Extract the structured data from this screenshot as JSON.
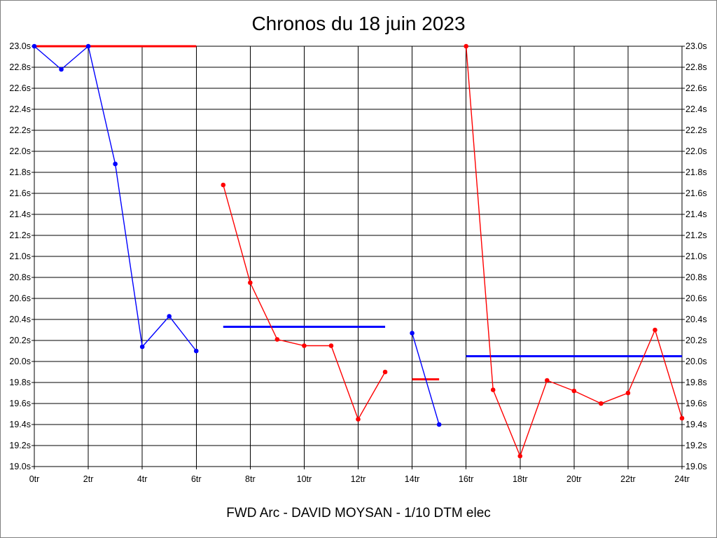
{
  "chart_data": {
    "type": "line",
    "title": "Chronos du 18 juin 2023",
    "footer": "FWD Arc - DAVID MOYSAN - 1/10 DTM elec",
    "xlim": [
      0,
      24
    ],
    "ylim": [
      19.0,
      23.0
    ],
    "x_ticks": [
      {
        "value": 0,
        "label": "0tr"
      },
      {
        "value": 2,
        "label": "2tr"
      },
      {
        "value": 4,
        "label": "4tr"
      },
      {
        "value": 6,
        "label": "6tr"
      },
      {
        "value": 8,
        "label": "8tr"
      },
      {
        "value": 10,
        "label": "10tr"
      },
      {
        "value": 12,
        "label": "12tr"
      },
      {
        "value": 14,
        "label": "14tr"
      },
      {
        "value": 16,
        "label": "16tr"
      },
      {
        "value": 18,
        "label": "18tr"
      },
      {
        "value": 20,
        "label": "20tr"
      },
      {
        "value": 22,
        "label": "22tr"
      },
      {
        "value": 24,
        "label": "24tr"
      }
    ],
    "y_ticks": [
      {
        "value": 23.0,
        "label": "23.0s"
      },
      {
        "value": 22.8,
        "label": "22.8s"
      },
      {
        "value": 22.6,
        "label": "22.6s"
      },
      {
        "value": 22.4,
        "label": "22.4s"
      },
      {
        "value": 22.2,
        "label": "22.2s"
      },
      {
        "value": 22.0,
        "label": "22.0s"
      },
      {
        "value": 21.8,
        "label": "21.8s"
      },
      {
        "value": 21.6,
        "label": "21.6s"
      },
      {
        "value": 21.4,
        "label": "21.4s"
      },
      {
        "value": 21.2,
        "label": "21.2s"
      },
      {
        "value": 21.0,
        "label": "21.0s"
      },
      {
        "value": 20.8,
        "label": "20.8s"
      },
      {
        "value": 20.6,
        "label": "20.6s"
      },
      {
        "value": 20.4,
        "label": "20.4s"
      },
      {
        "value": 20.2,
        "label": "20.2s"
      },
      {
        "value": 20.0,
        "label": "20.0s"
      },
      {
        "value": 19.8,
        "label": "19.8s"
      },
      {
        "value": 19.6,
        "label": "19.6s"
      },
      {
        "value": 19.4,
        "label": "19.4s"
      },
      {
        "value": 19.2,
        "label": "19.2s"
      },
      {
        "value": 19.0,
        "label": "19.0s"
      }
    ],
    "grid": true,
    "series": [
      {
        "color": "#0000ff",
        "x": [
          0,
          1,
          2,
          3,
          4,
          5,
          6
        ],
        "values": [
          23.0,
          22.78,
          23.0,
          21.88,
          20.14,
          20.43,
          20.1
        ]
      },
      {
        "color": "#ff0000",
        "x": [
          7,
          8,
          9,
          10,
          11,
          12,
          13
        ],
        "values": [
          21.68,
          20.75,
          20.21,
          20.15,
          20.15,
          19.45,
          19.9
        ]
      },
      {
        "color": "#0000ff",
        "x": [
          14,
          15
        ],
        "values": [
          20.27,
          19.4
        ]
      },
      {
        "color": "#ff0000",
        "x": [
          16,
          17,
          18,
          19,
          20,
          21,
          22,
          23,
          24
        ],
        "values": [
          23.0,
          19.73,
          19.1,
          19.82,
          19.72,
          19.6,
          19.7,
          20.3,
          19.46
        ]
      }
    ],
    "reference_lines": [
      {
        "color": "#ff0000",
        "x_start": 0,
        "x_end": 6,
        "value": 23.0
      },
      {
        "color": "#0000ff",
        "x_start": 7,
        "x_end": 13,
        "value": 20.33
      },
      {
        "color": "#ff0000",
        "x_start": 14,
        "x_end": 15,
        "value": 19.83
      },
      {
        "color": "#0000ff",
        "x_start": 16,
        "x_end": 24,
        "value": 20.05
      }
    ]
  }
}
